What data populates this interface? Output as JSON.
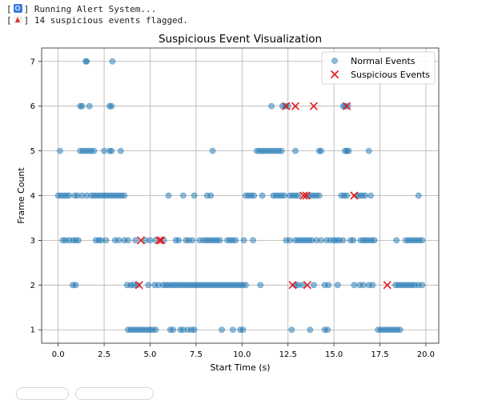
{
  "console": {
    "lines": [
      {
        "icon": "search-icon",
        "text": "Running Alert System..."
      },
      {
        "icon": "alert-icon",
        "text": "14 suspicious events flagged."
      }
    ]
  },
  "chart_data": {
    "type": "scatter",
    "title": "Suspicious Event Visualization",
    "xlabel": "Start Time (s)",
    "ylabel": "Frame Count",
    "xlim": [
      -0.9,
      20.7
    ],
    "ylim": [
      0.7,
      7.3
    ],
    "xticks": [
      "0.0",
      "2.5",
      "5.0",
      "7.5",
      "10.0",
      "12.5",
      "15.0",
      "17.5",
      "20.0"
    ],
    "xtick_values": [
      0,
      2.5,
      5,
      7.5,
      10,
      12.5,
      15,
      17.5,
      20
    ],
    "yticks": [
      "1",
      "2",
      "3",
      "4",
      "5",
      "6",
      "7"
    ],
    "grid": true,
    "legend_position": "top-right",
    "colors": {
      "normal": "#1f77b4",
      "suspicious": "#e41a1c"
    },
    "series": [
      {
        "name": "Normal Events",
        "marker": "circle",
        "points": [
          [
            1.5,
            7
          ],
          [
            1.55,
            7
          ],
          [
            2.95,
            7
          ],
          [
            1.2,
            6
          ],
          [
            1.3,
            6
          ],
          [
            1.7,
            6
          ],
          [
            2.8,
            6
          ],
          [
            2.9,
            6
          ],
          [
            11.6,
            6
          ],
          [
            12.2,
            6
          ],
          [
            12.35,
            6
          ],
          [
            12.5,
            6
          ],
          [
            15.5,
            6
          ],
          [
            15.6,
            6
          ],
          [
            15.75,
            6
          ],
          [
            0.1,
            5
          ],
          [
            1.2,
            5
          ],
          [
            1.35,
            5
          ],
          [
            1.5,
            5
          ],
          [
            1.65,
            5
          ],
          [
            1.8,
            5
          ],
          [
            1.95,
            5
          ],
          [
            2.5,
            5
          ],
          [
            2.8,
            5
          ],
          [
            2.9,
            5
          ],
          [
            3.4,
            5
          ],
          [
            8.4,
            5
          ],
          [
            10.8,
            5
          ],
          [
            10.95,
            5
          ],
          [
            11.1,
            5
          ],
          [
            11.25,
            5
          ],
          [
            11.4,
            5
          ],
          [
            11.55,
            5
          ],
          [
            11.7,
            5
          ],
          [
            11.85,
            5
          ],
          [
            12.0,
            5
          ],
          [
            12.15,
            5
          ],
          [
            12.9,
            5
          ],
          [
            14.2,
            5
          ],
          [
            14.3,
            5
          ],
          [
            15.6,
            5
          ],
          [
            15.7,
            5
          ],
          [
            15.8,
            5
          ],
          [
            16.9,
            5
          ],
          [
            0.0,
            4
          ],
          [
            0.15,
            4
          ],
          [
            0.3,
            4
          ],
          [
            0.45,
            4
          ],
          [
            0.6,
            4
          ],
          [
            0.9,
            4
          ],
          [
            1.05,
            4
          ],
          [
            1.3,
            4
          ],
          [
            1.55,
            4
          ],
          [
            1.8,
            4
          ],
          [
            1.95,
            4
          ],
          [
            2.1,
            4
          ],
          [
            2.25,
            4
          ],
          [
            2.4,
            4
          ],
          [
            2.55,
            4
          ],
          [
            2.7,
            4
          ],
          [
            2.85,
            4
          ],
          [
            3.0,
            4
          ],
          [
            3.15,
            4
          ],
          [
            3.3,
            4
          ],
          [
            3.45,
            4
          ],
          [
            3.6,
            4
          ],
          [
            6.0,
            4
          ],
          [
            6.8,
            4
          ],
          [
            7.4,
            4
          ],
          [
            8.1,
            4
          ],
          [
            8.3,
            4
          ],
          [
            10.2,
            4
          ],
          [
            10.35,
            4
          ],
          [
            10.5,
            4
          ],
          [
            10.65,
            4
          ],
          [
            11.1,
            4
          ],
          [
            11.7,
            4
          ],
          [
            11.85,
            4
          ],
          [
            12.0,
            4
          ],
          [
            12.15,
            4
          ],
          [
            12.3,
            4
          ],
          [
            12.6,
            4
          ],
          [
            12.75,
            4
          ],
          [
            12.9,
            4
          ],
          [
            13.05,
            4
          ],
          [
            13.6,
            4
          ],
          [
            13.75,
            4
          ],
          [
            13.9,
            4
          ],
          [
            14.05,
            4
          ],
          [
            14.2,
            4
          ],
          [
            15.4,
            4
          ],
          [
            15.55,
            4
          ],
          [
            15.7,
            4
          ],
          [
            16.25,
            4
          ],
          [
            16.4,
            4
          ],
          [
            16.55,
            4
          ],
          [
            16.7,
            4
          ],
          [
            17.0,
            4
          ],
          [
            19.6,
            4
          ],
          [
            0.25,
            3
          ],
          [
            0.4,
            3
          ],
          [
            0.6,
            3
          ],
          [
            0.8,
            3
          ],
          [
            0.95,
            3
          ],
          [
            1.1,
            3
          ],
          [
            2.05,
            3
          ],
          [
            2.2,
            3
          ],
          [
            2.35,
            3
          ],
          [
            2.6,
            3
          ],
          [
            3.1,
            3
          ],
          [
            3.3,
            3
          ],
          [
            3.6,
            3
          ],
          [
            3.8,
            3
          ],
          [
            4.2,
            3
          ],
          [
            4.75,
            3
          ],
          [
            5.0,
            3
          ],
          [
            5.3,
            3
          ],
          [
            5.75,
            3
          ],
          [
            6.4,
            3
          ],
          [
            6.55,
            3
          ],
          [
            6.95,
            3
          ],
          [
            7.1,
            3
          ],
          [
            7.3,
            3
          ],
          [
            7.7,
            3
          ],
          [
            7.9,
            3
          ],
          [
            8.05,
            3
          ],
          [
            8.2,
            3
          ],
          [
            8.35,
            3
          ],
          [
            8.5,
            3
          ],
          [
            8.65,
            3
          ],
          [
            8.8,
            3
          ],
          [
            9.2,
            3
          ],
          [
            9.35,
            3
          ],
          [
            9.5,
            3
          ],
          [
            9.65,
            3
          ],
          [
            10.1,
            3
          ],
          [
            10.6,
            3
          ],
          [
            12.4,
            3
          ],
          [
            12.6,
            3
          ],
          [
            12.9,
            3
          ],
          [
            13.05,
            3
          ],
          [
            13.2,
            3
          ],
          [
            13.35,
            3
          ],
          [
            13.5,
            3
          ],
          [
            13.65,
            3
          ],
          [
            13.8,
            3
          ],
          [
            14.05,
            3
          ],
          [
            14.3,
            3
          ],
          [
            14.6,
            3
          ],
          [
            14.8,
            3
          ],
          [
            15.0,
            3
          ],
          [
            15.15,
            3
          ],
          [
            15.3,
            3
          ],
          [
            15.5,
            3
          ],
          [
            15.9,
            3
          ],
          [
            16.05,
            3
          ],
          [
            16.45,
            3
          ],
          [
            16.6,
            3
          ],
          [
            16.75,
            3
          ],
          [
            16.9,
            3
          ],
          [
            17.05,
            3
          ],
          [
            17.2,
            3
          ],
          [
            18.4,
            3
          ],
          [
            18.9,
            3
          ],
          [
            19.05,
            3
          ],
          [
            19.2,
            3
          ],
          [
            19.35,
            3
          ],
          [
            19.5,
            3
          ],
          [
            19.65,
            3
          ],
          [
            19.8,
            3
          ],
          [
            0.8,
            2
          ],
          [
            0.95,
            2
          ],
          [
            3.75,
            2
          ],
          [
            3.95,
            2
          ],
          [
            4.1,
            2
          ],
          [
            4.3,
            2
          ],
          [
            4.9,
            2
          ],
          [
            5.25,
            2
          ],
          [
            5.45,
            2
          ],
          [
            5.7,
            2
          ],
          [
            5.85,
            2
          ],
          [
            6.0,
            2
          ],
          [
            6.15,
            2
          ],
          [
            6.3,
            2
          ],
          [
            6.45,
            2
          ],
          [
            6.6,
            2
          ],
          [
            6.75,
            2
          ],
          [
            6.9,
            2
          ],
          [
            7.05,
            2
          ],
          [
            7.2,
            2
          ],
          [
            7.35,
            2
          ],
          [
            7.5,
            2
          ],
          [
            7.65,
            2
          ],
          [
            7.8,
            2
          ],
          [
            7.95,
            2
          ],
          [
            8.1,
            2
          ],
          [
            8.25,
            2
          ],
          [
            8.4,
            2
          ],
          [
            8.55,
            2
          ],
          [
            8.7,
            2
          ],
          [
            8.85,
            2
          ],
          [
            9.0,
            2
          ],
          [
            9.15,
            2
          ],
          [
            9.3,
            2
          ],
          [
            9.45,
            2
          ],
          [
            9.6,
            2
          ],
          [
            9.75,
            2
          ],
          [
            9.9,
            2
          ],
          [
            10.05,
            2
          ],
          [
            10.2,
            2
          ],
          [
            11.0,
            2
          ],
          [
            12.9,
            2
          ],
          [
            13.05,
            2
          ],
          [
            13.3,
            2
          ],
          [
            13.9,
            2
          ],
          [
            14.5,
            2
          ],
          [
            14.7,
            2
          ],
          [
            15.2,
            2
          ],
          [
            16.1,
            2
          ],
          [
            16.4,
            2
          ],
          [
            16.6,
            2
          ],
          [
            16.9,
            2
          ],
          [
            17.1,
            2
          ],
          [
            18.35,
            2
          ],
          [
            18.5,
            2
          ],
          [
            18.65,
            2
          ],
          [
            18.8,
            2
          ],
          [
            18.95,
            2
          ],
          [
            19.1,
            2
          ],
          [
            19.25,
            2
          ],
          [
            19.4,
            2
          ],
          [
            19.6,
            2
          ],
          [
            19.8,
            2
          ],
          [
            3.8,
            1
          ],
          [
            3.95,
            1
          ],
          [
            4.1,
            1
          ],
          [
            4.25,
            1
          ],
          [
            4.4,
            1
          ],
          [
            4.55,
            1
          ],
          [
            4.7,
            1
          ],
          [
            4.85,
            1
          ],
          [
            5.0,
            1
          ],
          [
            5.15,
            1
          ],
          [
            5.3,
            1
          ],
          [
            6.1,
            1
          ],
          [
            6.25,
            1
          ],
          [
            6.65,
            1
          ],
          [
            6.8,
            1
          ],
          [
            7.05,
            1
          ],
          [
            7.25,
            1
          ],
          [
            7.4,
            1
          ],
          [
            8.9,
            1
          ],
          [
            9.5,
            1
          ],
          [
            9.9,
            1
          ],
          [
            10.05,
            1
          ],
          [
            12.7,
            1
          ],
          [
            13.7,
            1
          ],
          [
            14.5,
            1
          ],
          [
            14.65,
            1
          ],
          [
            17.4,
            1
          ],
          [
            17.55,
            1
          ],
          [
            17.7,
            1
          ],
          [
            17.85,
            1
          ],
          [
            18.0,
            1
          ],
          [
            18.15,
            1
          ],
          [
            18.3,
            1
          ],
          [
            18.45,
            1
          ],
          [
            18.6,
            1
          ]
        ]
      },
      {
        "name": "Suspicious Events",
        "marker": "x",
        "points": [
          [
            12.4,
            6
          ],
          [
            12.9,
            6
          ],
          [
            13.9,
            6
          ],
          [
            15.7,
            6
          ],
          [
            13.35,
            4
          ],
          [
            13.5,
            4
          ],
          [
            16.1,
            4
          ],
          [
            4.5,
            3
          ],
          [
            5.5,
            3
          ],
          [
            5.6,
            3
          ],
          [
            4.4,
            2
          ],
          [
            12.75,
            2
          ],
          [
            13.55,
            2
          ],
          [
            17.9,
            2
          ]
        ]
      }
    ]
  }
}
